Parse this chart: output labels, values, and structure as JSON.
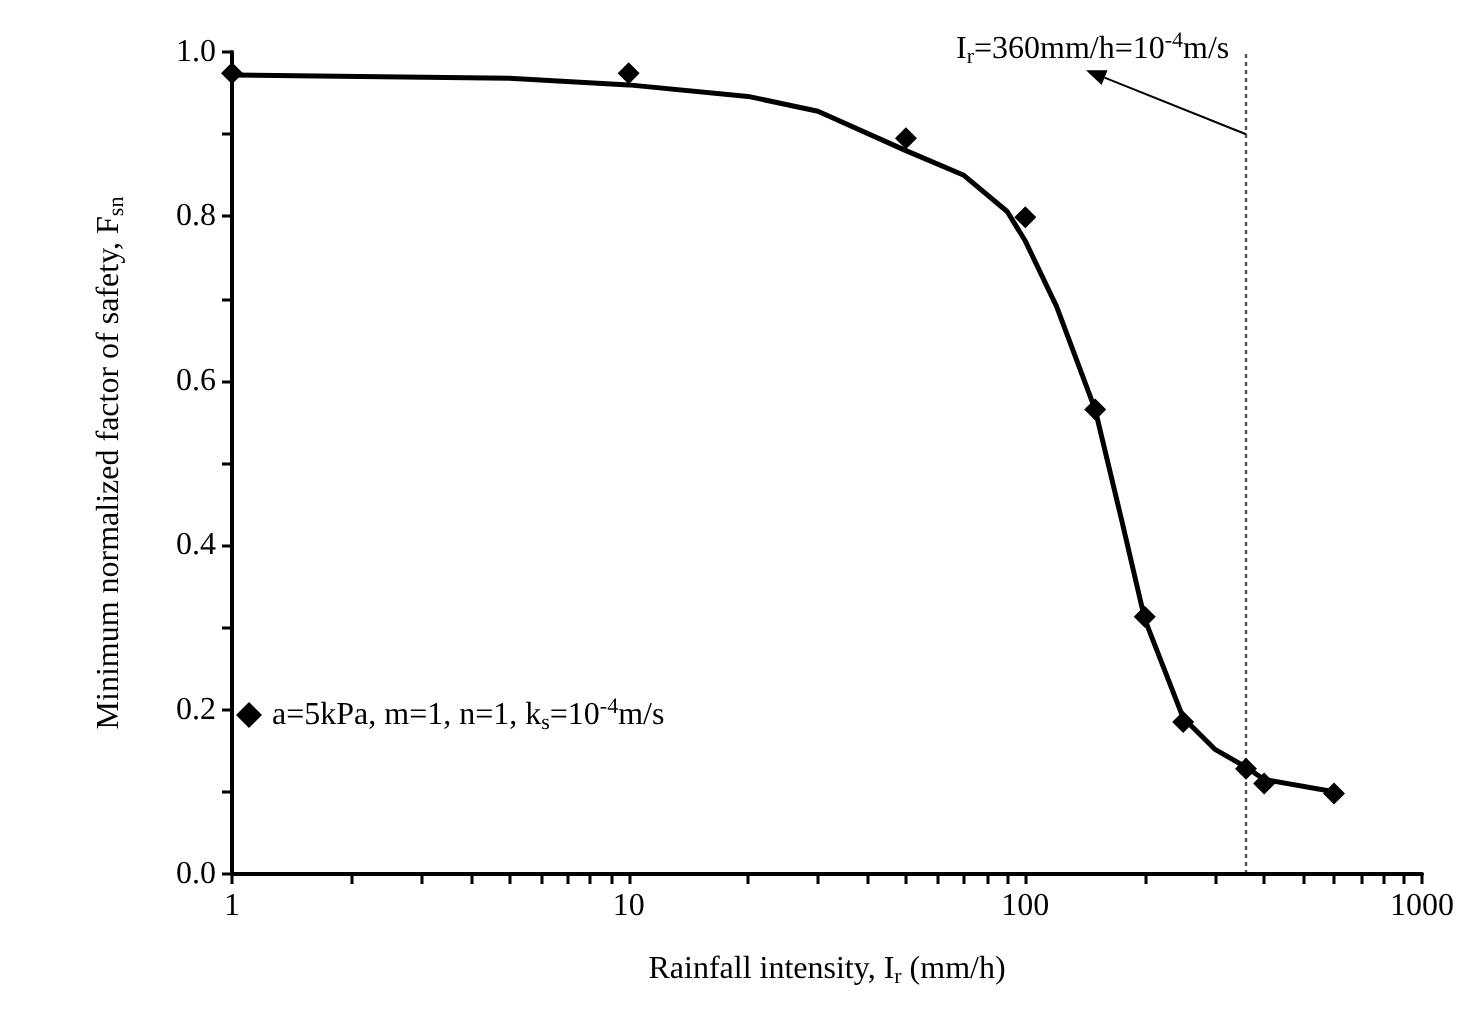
{
  "chart_data": {
    "type": "scatter",
    "xlabel": "Rainfall intensity, I$_{r}$ (mm/h)",
    "ylabel": "Minimum normalized factor of safety, F$_{sn}$",
    "log": "x",
    "xlim": [
      1,
      1000
    ],
    "xticks": [
      1,
      {
        "value": 2,
        "label": null
      },
      {
        "value": 3,
        "label": null
      },
      {
        "value": 4,
        "label": null
      },
      {
        "value": 5,
        "label": null
      },
      {
        "value": 6,
        "label": null
      },
      {
        "value": 7,
        "label": null
      },
      {
        "value": 8,
        "label": null
      },
      {
        "value": 9,
        "label": null
      },
      10,
      {
        "value": 20,
        "label": null
      },
      {
        "value": 30,
        "label": null
      },
      {
        "value": 40,
        "label": null
      },
      {
        "value": 50,
        "label": null
      },
      {
        "value": 60,
        "label": null
      },
      {
        "value": 70,
        "label": null
      },
      {
        "value": 80,
        "label": null
      },
      {
        "value": 90,
        "label": null
      },
      100,
      {
        "value": 200,
        "label": null
      },
      {
        "value": 300,
        "label": null
      },
      {
        "value": 400,
        "label": null
      },
      {
        "value": 500,
        "label": null
      },
      {
        "value": 600,
        "label": null
      },
      {
        "value": 700,
        "label": null
      },
      {
        "value": 800,
        "label": null
      },
      {
        "value": 900,
        "label": null
      },
      1000
    ],
    "ylim": [
      0,
      1.0
    ],
    "yticks": [
      {
        "value": 0,
        "label": "0.0"
      },
      {
        "value": 0.1,
        "label": null
      },
      {
        "value": 0.2,
        "label": "0.2"
      },
      {
        "value": 0.3,
        "label": null
      },
      {
        "value": 0.4,
        "label": "0.4"
      },
      {
        "value": 0.5,
        "label": null
      },
      {
        "value": 0.6,
        "label": "0.6"
      },
      {
        "value": 0.7,
        "label": null
      },
      {
        "value": 0.8,
        "label": "0.8"
      },
      {
        "value": 0.9,
        "label": null
      },
      {
        "value": 1.0,
        "label": "1.0"
      }
    ],
    "grid": false,
    "legend": "left",
    "series": [
      {
        "name": "a=5kPa, m=1, n=1, k$_{s}$=10$^{-4}$m/s",
        "color": "#000000",
        "marker": "diamond",
        "x": [
          1,
          10,
          50,
          100,
          150,
          200,
          250,
          360,
          400,
          600
        ],
        "values": [
          0.974,
          0.974,
          0.895,
          0.799,
          0.565,
          0.313,
          0.185,
          0.128,
          0.11,
          0.098
        ]
      },
      {
        "type": "line",
        "color": "#000000",
        "marker": "none",
        "line_style": "solid",
        "x": [
          1,
          5,
          10,
          20,
          30,
          50,
          70,
          90,
          100,
          120,
          150,
          175,
          200,
          250,
          300,
          360,
          400,
          600
        ],
        "values": [
          0.972,
          0.968,
          0.96,
          0.946,
          0.928,
          0.88,
          0.85,
          0.806,
          0.77,
          0.69,
          0.565,
          0.43,
          0.31,
          0.19,
          0.152,
          0.13,
          0.115,
          0.1
        ]
      }
    ],
    "ref_lines": [
      {
        "axis": "x",
        "value": 360,
        "line_style": "dotted",
        "color": "#555555"
      }
    ],
    "annotations": [
      {
        "text": "I$_{r}$=360mm/h=10$^{-4}$m/s",
        "x": 360,
        "y": 0.9
      }
    ]
  }
}
